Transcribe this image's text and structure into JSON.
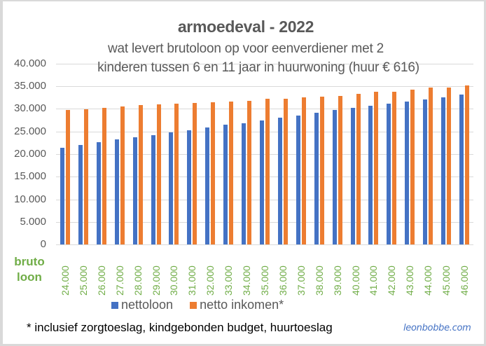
{
  "chart_data": {
    "type": "bar",
    "title": "armoedeval - 2022",
    "subtitle": [
      "wat levert brutoloon op voor eenverdiener met 2",
      "kinderen tussen 6 en 11 jaar in huurwoning (huur € 616)"
    ],
    "xlabel": "bruto loon",
    "ylabel": "",
    "ylim": [
      0,
      40000
    ],
    "yticks": [
      "0",
      "5.000",
      "10.000",
      "15.000",
      "20.000",
      "25.000",
      "30.000",
      "35.000",
      "40.000"
    ],
    "grid": true,
    "legend_position": "bottom",
    "categories": [
      "24.000",
      "25.000",
      "26.000",
      "27.000",
      "28.000",
      "29.000",
      "30.000",
      "31.000",
      "32.000",
      "33.000",
      "34.000",
      "35.000",
      "36.000",
      "37.000",
      "38.000",
      "39.000",
      "40.000",
      "41.000",
      "42.000",
      "43.000",
      "44.000",
      "45.000",
      "46.000"
    ],
    "series": [
      {
        "name": "nettoloon",
        "color": "#4472C4",
        "values": [
          21450,
          22050,
          22650,
          23200,
          23650,
          24200,
          24800,
          25250,
          25850,
          26400,
          26800,
          27480,
          28050,
          28460,
          29060,
          29680,
          30200,
          30630,
          31060,
          31530,
          31980,
          32580,
          33090
        ]
      },
      {
        "name": "netto inkomen*",
        "color": "#ED7D31",
        "values": [
          29750,
          29900,
          30200,
          30500,
          30760,
          30920,
          31070,
          31220,
          31380,
          31530,
          31790,
          32150,
          32250,
          32560,
          32720,
          32870,
          33200,
          33690,
          33790,
          34270,
          34730,
          34730,
          35160
        ]
      }
    ],
    "annotations": [
      "* inclusief zorgtoeslag, kindgebonden budget, huurtoeslag",
      "leonbobbe.com"
    ]
  },
  "header": {
    "title": "armoedeval - 2022",
    "subtitle_line1": "wat levert brutoloon op voor eenverdiener met 2",
    "subtitle_line2": "kinderen tussen 6 en 11 jaar in huurwoning (huur € 616)"
  },
  "axis": {
    "x_title_line1": "bruto",
    "x_title_line2": "loon"
  },
  "legend": {
    "items": [
      {
        "label": "nettoloon",
        "color": "#4472C4"
      },
      {
        "label": "netto inkomen*",
        "color": "#ED7D31"
      }
    ]
  },
  "footer": {
    "footnote": "* inclusief zorgtoeslag, kindgebonden budget, huurtoeslag",
    "credit": "leonbobbe.com"
  },
  "colors": {
    "blue": "#4472C4",
    "orange": "#ED7D31",
    "green": "#70AD47",
    "text": "#595959",
    "grid": "#D9D9D9"
  }
}
